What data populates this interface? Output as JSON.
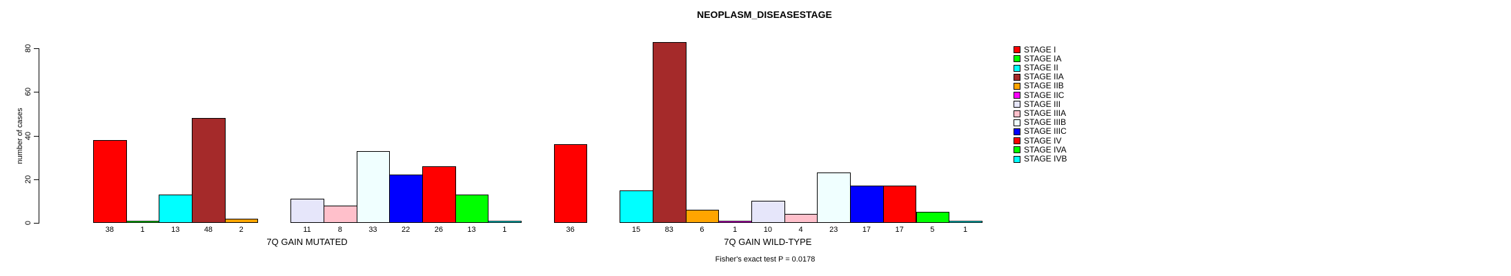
{
  "chart_data": {
    "type": "bar",
    "title": "NEOPLASM_DISEASESTAGE",
    "xlabel": "",
    "ylabel": "number of cases",
    "ylim": [
      0,
      80
    ],
    "yticks": [
      0,
      20,
      40,
      60,
      80
    ],
    "grid": false,
    "legend_position": "right",
    "categories": [
      "STAGE I",
      "STAGE IA",
      "STAGE II",
      "STAGE IIA",
      "STAGE IIB",
      "STAGE IIC",
      "STAGE III",
      "STAGE IIIA",
      "STAGE IIIB",
      "STAGE IIIC",
      "STAGE IV",
      "STAGE IVA",
      "STAGE IVB"
    ],
    "colors": [
      "#FF0000",
      "#00FF00",
      "#00FFFF",
      "#A52A2A",
      "#FFA500",
      "#FF00FF",
      "#E6E6FA",
      "#FFC0CB",
      "#F0FFFF",
      "#0000FF",
      "#FF0000",
      "#00FF00",
      "#00FFFF"
    ],
    "series": [
      {
        "name": "7Q GAIN MUTATED",
        "values": [
          38,
          1,
          13,
          48,
          2,
          0,
          11,
          8,
          33,
          22,
          26,
          13,
          1
        ]
      },
      {
        "name": "7Q GAIN WILD-TYPE",
        "values": [
          36,
          0,
          15,
          83,
          6,
          1,
          10,
          4,
          23,
          17,
          17,
          5,
          1
        ]
      }
    ],
    "bar_value_labels_shown": true,
    "zero_value_bars_hidden": true,
    "annotation": "Fisher's exact test P = 0.0178",
    "axis_color": "#000000",
    "background_color": "#FFFFFF"
  }
}
